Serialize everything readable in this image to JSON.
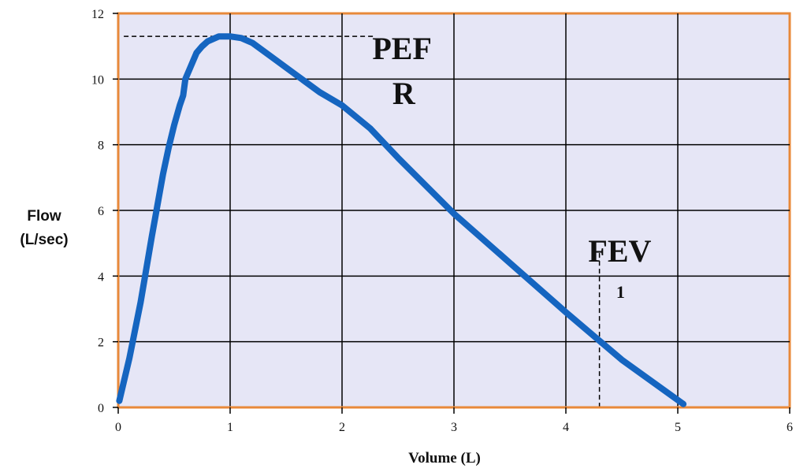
{
  "chart_data": {
    "type": "line",
    "xlabel": "Volume (L)",
    "ylabel_lines": [
      "Flow",
      "(L/sec)"
    ],
    "xlim": [
      0,
      6
    ],
    "ylim": [
      0,
      12
    ],
    "x_ticks": [
      0,
      1,
      2,
      3,
      4,
      5,
      6
    ],
    "y_ticks": [
      0,
      2,
      4,
      6,
      8,
      10,
      12
    ],
    "x_tick_labels": [
      "0",
      "1",
      "2",
      "3",
      "4",
      "5",
      "6"
    ],
    "y_tick_labels": [
      "0",
      "2",
      "4",
      "6",
      "8",
      "10",
      "12"
    ],
    "grid": true,
    "series": [
      {
        "x": [
          0.01,
          0.1,
          0.2,
          0.3,
          0.4,
          0.45,
          0.5,
          0.55,
          0.58,
          0.6,
          0.65,
          0.7,
          0.75,
          0.8,
          0.9,
          1.0,
          1.1,
          1.2,
          1.4,
          1.6,
          1.8,
          2.0,
          2.25,
          2.5,
          3.0,
          3.5,
          4.0,
          4.5,
          5.05
        ],
        "y": [
          0.2,
          1.5,
          3.2,
          5.2,
          7.1,
          7.9,
          8.6,
          9.2,
          9.5,
          10.0,
          10.4,
          10.8,
          11.0,
          11.15,
          11.3,
          11.3,
          11.25,
          11.1,
          10.6,
          10.1,
          9.6,
          9.2,
          8.5,
          7.6,
          5.9,
          4.4,
          2.9,
          1.45,
          0.1
        ]
      }
    ],
    "series_color": "#1565c0",
    "plot_background": "#e6e6f6",
    "border_color": "#e8893a",
    "annotations": [
      {
        "kind": "pefr",
        "line1": "PEF",
        "line2": "R",
        "y": 11.3
      },
      {
        "kind": "fev1",
        "line1": "FEV",
        "line2": "1",
        "x": 4.3
      }
    ]
  }
}
